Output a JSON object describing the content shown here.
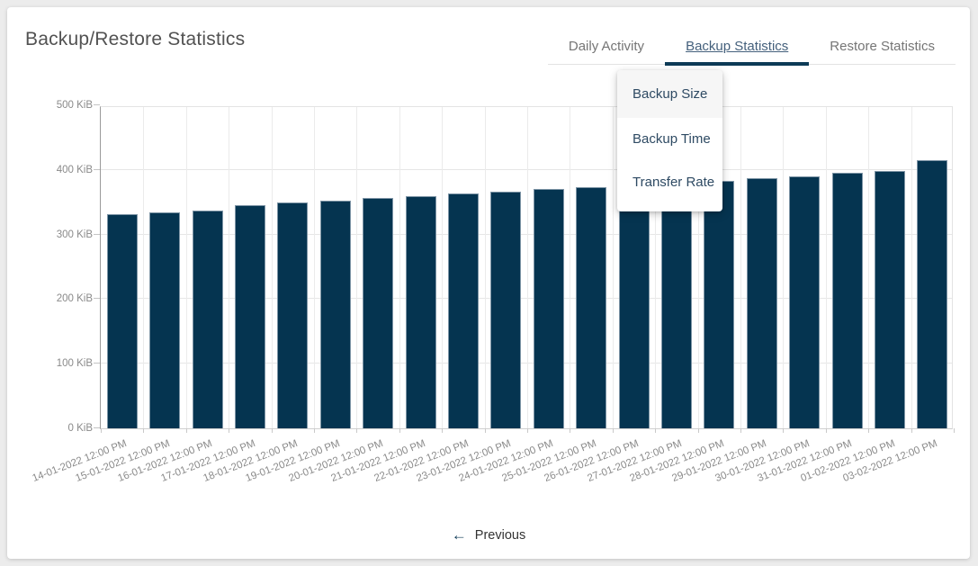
{
  "page": {
    "title": "Backup/Restore Statistics"
  },
  "tabs": [
    {
      "label": "Daily Activity",
      "active": false
    },
    {
      "label": "Backup Statistics",
      "active": true
    },
    {
      "label": "Restore Statistics",
      "active": false
    }
  ],
  "dropdown": {
    "items": [
      {
        "label": "Backup Size",
        "highlighted": true
      },
      {
        "label": "Backup Time",
        "highlighted": false
      },
      {
        "label": "Transfer Rate",
        "highlighted": false
      }
    ]
  },
  "pagination": {
    "previous_label": "Previous",
    "arrow_icon": "←"
  },
  "colors": {
    "bar": "#053450",
    "bar_border": "#7e95a6",
    "active_tab_indicator": "#0d3a56",
    "active_tab_text": "#44607c",
    "inactive_tab_text": "#757575",
    "highlight_bg": "#f6f6f6"
  },
  "chart_data": {
    "type": "bar",
    "title": "",
    "xlabel": "",
    "ylabel": "",
    "ylim": [
      0,
      500
    ],
    "grid": true,
    "legend": "none",
    "bar_color": "#053450",
    "y_ticks": [
      "0 KiB",
      "100 KiB",
      "200 KiB",
      "300 KiB",
      "400 KiB",
      "500 KiB"
    ],
    "categories": [
      "14-01-2022 12:00 PM",
      "15-01-2022 12:00 PM",
      "16-01-2022 12:00 PM",
      "17-01-2022 12:00 PM",
      "18-01-2022 12:00 PM",
      "19-01-2022 12:00 PM",
      "20-01-2022 12:00 PM",
      "21-01-2022 12:00 PM",
      "22-01-2022 12:00 PM",
      "23-01-2022 12:00 PM",
      "24-01-2022 12:00 PM",
      "25-01-2022 12:00 PM",
      "26-01-2022 12:00 PM",
      "27-01-2022 12:00 PM",
      "28-01-2022 12:00 PM",
      "29-01-2022 12:00 PM",
      "30-01-2022 12:00 PM",
      "31-01-2022 12:00 PM",
      "01-02-2022 12:00 PM",
      "03-02-2022 12:00 PM"
    ],
    "values": [
      331,
      334,
      337,
      345,
      350,
      352,
      357,
      360,
      363,
      367,
      370,
      373,
      377,
      380,
      383,
      387,
      390,
      395,
      399,
      415
    ],
    "values_unit": "KiB"
  }
}
